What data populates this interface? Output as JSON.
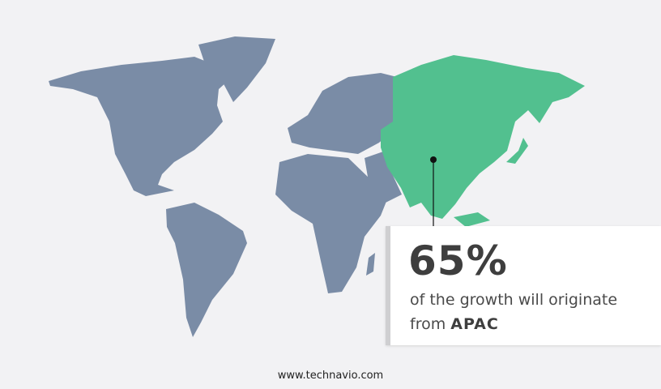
{
  "colors": {
    "background": "#f2f2f4",
    "other_regions": "#7a8ca6",
    "highlight_region": "#52c08f"
  },
  "map": {
    "highlighted_region": "APAC"
  },
  "callout": {
    "value": "65%",
    "text": "of the growth will originate",
    "text_from": "from",
    "region": "APAC"
  },
  "footer": {
    "url": "www.technavio.com"
  }
}
